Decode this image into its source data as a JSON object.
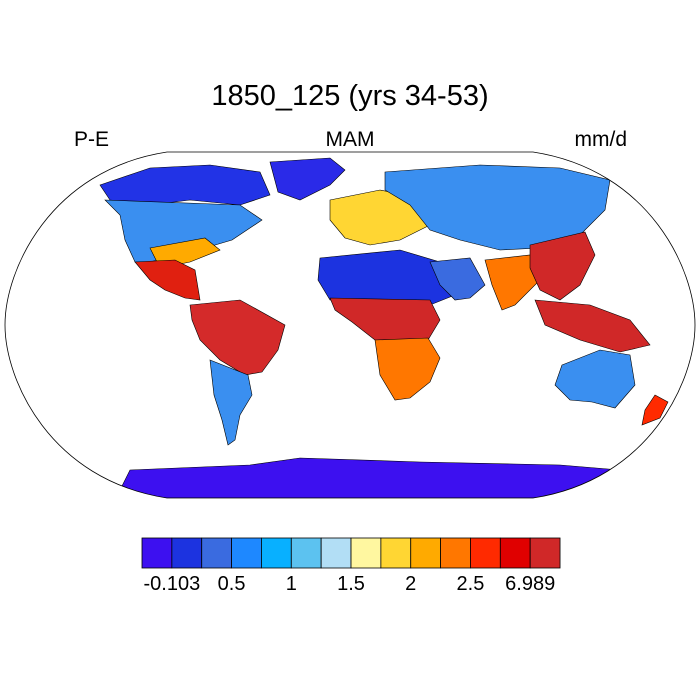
{
  "title": "1850_125 (yrs 34-53)",
  "left_label": "P-E",
  "center_label": "MAM",
  "right_label": "mm/d",
  "colorbar": {
    "colors": [
      "#3d10f0",
      "#1c33e0",
      "#3a6be0",
      "#1e88ff",
      "#08b0ff",
      "#5cc2f0",
      "#b2def5",
      "#fff7a0",
      "#ffd633",
      "#ffaa00",
      "#ff7700",
      "#ff2a00",
      "#e00000",
      "#d02828"
    ],
    "labels": [
      {
        "text": "-0.103",
        "index": 1
      },
      {
        "text": "0.5",
        "index": 3
      },
      {
        "text": "1",
        "index": 5
      },
      {
        "text": "1.5",
        "index": 7
      },
      {
        "text": "2",
        "index": 9
      },
      {
        "text": "2.5",
        "index": 11
      },
      {
        "text": "6.989",
        "index": 13
      }
    ]
  },
  "regions": [
    {
      "name": "greenland",
      "color": "#2a2ae8"
    },
    {
      "name": "canada-north",
      "color": "#2233e6"
    },
    {
      "name": "north-america",
      "color": "#3a8ff0"
    },
    {
      "name": "eastern-us",
      "color": "#ffaa00"
    },
    {
      "name": "central-america",
      "color": "#e02010"
    },
    {
      "name": "south-america",
      "color": "#d42a2a"
    },
    {
      "name": "south-america-south",
      "color": "#3a8ff0"
    },
    {
      "name": "europe",
      "color": "#ffd633"
    },
    {
      "name": "russia",
      "color": "#3a8ff0"
    },
    {
      "name": "sahara",
      "color": "#1c33e0"
    },
    {
      "name": "central-africa",
      "color": "#d02828"
    },
    {
      "name": "southern-africa",
      "color": "#ff7700"
    },
    {
      "name": "arabia",
      "color": "#3a6be0"
    },
    {
      "name": "india",
      "color": "#ff7700"
    },
    {
      "name": "southeast-asia",
      "color": "#d02828"
    },
    {
      "name": "maritime-continent",
      "color": "#d02828"
    },
    {
      "name": "australia",
      "color": "#3a8ff0"
    },
    {
      "name": "new-zealand",
      "color": "#ff2a00"
    },
    {
      "name": "antarctica",
      "color": "#3d10f0"
    }
  ]
}
